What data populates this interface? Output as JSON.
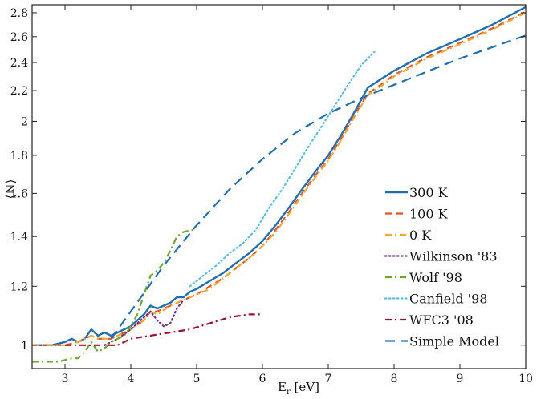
{
  "chart_data": {
    "type": "line",
    "title": "",
    "xlabel": "E$_r$ [eV]",
    "xlabel_main": "E",
    "xlabel_sub": "r",
    "xlabel_unit": " [eV]",
    "ylabel": "⟨N⟩",
    "xlim": [
      2.5,
      10
    ],
    "ylim": [
      0.93,
      2.87
    ],
    "y_scale": "log",
    "x_ticks": [
      3,
      4,
      5,
      6,
      7,
      8,
      9,
      10
    ],
    "y_ticks": [
      1,
      1.2,
      1.4,
      1.6,
      1.8,
      2,
      2.2,
      2.4,
      2.6,
      2.8
    ],
    "y_tick_labels": [
      "1",
      "1.2",
      "1.4",
      "1.6",
      "1.8",
      "2",
      "2.2",
      "2.4",
      "2.6",
      "2.8"
    ],
    "grid": false,
    "legend_position": "bottom-right",
    "series": [
      {
        "name": "300 K",
        "color": "#1f6fb4",
        "dash": "solid",
        "x": [
          2.5,
          2.8,
          3.0,
          3.1,
          3.2,
          3.3,
          3.4,
          3.5,
          3.6,
          3.7,
          3.8,
          3.9,
          4.0,
          4.1,
          4.2,
          4.3,
          4.4,
          4.5,
          4.6,
          4.7,
          4.8,
          4.9,
          5.0,
          5.2,
          5.4,
          5.6,
          5.8,
          6.0,
          6.2,
          6.4,
          6.6,
          6.8,
          7.0,
          7.2,
          7.4,
          7.6,
          7.8,
          8.0,
          8.5,
          9.0,
          9.5,
          10.0
        ],
        "y": [
          1.0,
          1.0,
          1.01,
          1.02,
          1.01,
          1.02,
          1.05,
          1.03,
          1.04,
          1.03,
          1.04,
          1.05,
          1.06,
          1.08,
          1.1,
          1.13,
          1.12,
          1.13,
          1.14,
          1.16,
          1.16,
          1.18,
          1.19,
          1.22,
          1.25,
          1.29,
          1.33,
          1.38,
          1.45,
          1.53,
          1.62,
          1.71,
          1.8,
          1.92,
          2.06,
          2.22,
          2.28,
          2.34,
          2.47,
          2.58,
          2.7,
          2.85
        ]
      },
      {
        "name": "100 K",
        "color": "#e8541e",
        "dash": "dashed",
        "x": [
          2.5,
          2.8,
          3.0,
          3.2,
          3.4,
          3.5,
          3.6,
          3.7,
          3.8,
          3.9,
          4.0,
          4.2,
          4.3,
          4.4,
          4.6,
          4.8,
          5.0,
          5.2,
          5.4,
          5.6,
          5.8,
          6.0,
          6.2,
          6.4,
          6.6,
          6.8,
          7.0,
          7.2,
          7.4,
          7.6,
          7.8,
          8.0,
          8.5,
          9.0,
          9.5,
          10.0
        ],
        "y": [
          1.0,
          1.0,
          1.0,
          1.01,
          1.03,
          1.02,
          1.02,
          1.02,
          1.03,
          1.04,
          1.05,
          1.08,
          1.11,
          1.11,
          1.13,
          1.15,
          1.17,
          1.2,
          1.23,
          1.27,
          1.31,
          1.36,
          1.43,
          1.51,
          1.6,
          1.69,
          1.78,
          1.9,
          2.04,
          2.18,
          2.24,
          2.31,
          2.44,
          2.55,
          2.67,
          2.81
        ]
      },
      {
        "name": "0 K",
        "color": "#f0a830",
        "dash": "dashdot",
        "x": [
          2.5,
          2.8,
          3.0,
          3.2,
          3.4,
          3.5,
          3.6,
          3.7,
          3.8,
          3.9,
          4.0,
          4.2,
          4.3,
          4.4,
          4.6,
          4.8,
          5.0,
          5.2,
          5.4,
          5.6,
          5.8,
          6.0,
          6.2,
          6.4,
          6.6,
          6.8,
          7.0,
          7.2,
          7.4,
          7.6,
          7.8,
          8.0,
          8.5,
          9.0,
          9.5,
          10.0
        ],
        "y": [
          1.0,
          1.0,
          1.0,
          1.01,
          1.03,
          1.02,
          1.02,
          1.02,
          1.03,
          1.04,
          1.05,
          1.08,
          1.11,
          1.1,
          1.13,
          1.15,
          1.17,
          1.19,
          1.23,
          1.27,
          1.31,
          1.36,
          1.42,
          1.5,
          1.59,
          1.68,
          1.77,
          1.89,
          2.03,
          2.17,
          2.23,
          2.3,
          2.43,
          2.54,
          2.66,
          2.8
        ]
      },
      {
        "name": "Wilkinson '83",
        "color": "#7b2d8e",
        "dash": "dotted",
        "x": [
          3.6,
          3.8,
          4.0,
          4.1,
          4.2,
          4.3,
          4.4,
          4.5,
          4.6,
          4.7,
          4.8
        ],
        "y": [
          1.0,
          1.02,
          1.05,
          1.07,
          1.09,
          1.11,
          1.08,
          1.06,
          1.07,
          1.12,
          1.15
        ]
      },
      {
        "name": "Wolf '98",
        "color": "#6aaa2a",
        "dash": "dashdot",
        "x": [
          2.5,
          2.7,
          2.9,
          3.1,
          3.2,
          3.3,
          3.4,
          3.5,
          3.6,
          3.7,
          3.8,
          3.9,
          4.0,
          4.1,
          4.2,
          4.3,
          4.4,
          4.5,
          4.6,
          4.7,
          4.8,
          4.95
        ],
        "y": [
          0.95,
          0.95,
          0.95,
          0.96,
          0.96,
          0.98,
          1.01,
          0.98,
          0.99,
          1.01,
          1.02,
          1.03,
          1.06,
          1.1,
          1.17,
          1.24,
          1.26,
          1.29,
          1.34,
          1.4,
          1.42,
          1.43
        ]
      },
      {
        "name": "Canfield '98",
        "color": "#55c0e8",
        "dash": "dotted",
        "x": [
          4.9,
          5.1,
          5.3,
          5.5,
          5.7,
          5.9,
          6.1,
          6.3,
          6.5,
          6.7,
          6.9,
          7.1,
          7.3,
          7.5,
          7.7
        ],
        "y": [
          1.2,
          1.24,
          1.28,
          1.33,
          1.37,
          1.43,
          1.53,
          1.62,
          1.73,
          1.85,
          1.97,
          2.1,
          2.24,
          2.38,
          2.48
        ]
      },
      {
        "name": "WFC3 '08",
        "color": "#a0102e",
        "dash": "dashdot",
        "x": [
          3.0,
          3.3,
          3.5,
          3.7,
          3.8,
          3.9,
          4.0,
          4.3,
          4.6,
          4.9,
          5.2,
          5.5,
          5.8,
          6.0
        ],
        "y": [
          1.0,
          1.0,
          1.0,
          1.0,
          1.0,
          1.01,
          1.02,
          1.03,
          1.04,
          1.05,
          1.07,
          1.09,
          1.1,
          1.1
        ]
      },
      {
        "name": "Simple Model",
        "color": "#1f6fb4",
        "dash": "longdash",
        "x": [
          3.7,
          4.0,
          4.5,
          5.0,
          5.5,
          6.0,
          6.5,
          7.0,
          7.5,
          8.0,
          9.0,
          10.0
        ],
        "y": [
          1.02,
          1.11,
          1.28,
          1.45,
          1.62,
          1.78,
          1.93,
          2.05,
          2.15,
          2.24,
          2.43,
          2.61
        ]
      }
    ]
  }
}
